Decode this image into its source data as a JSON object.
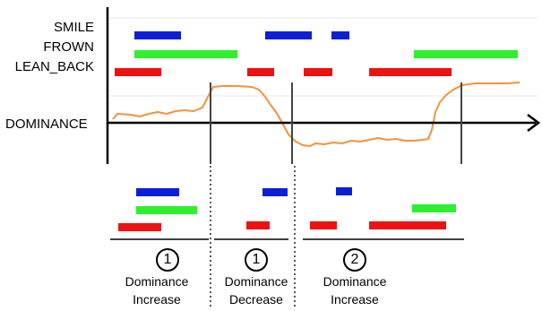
{
  "labels": {
    "smile": "SMILE",
    "frown": "FROWN",
    "lean_back": "LEAN_BACK",
    "dominance": "DOMINANCE"
  },
  "colors": {
    "smile": "#0b1fd8",
    "frown": "#2ef02e",
    "lean_back": "#ee1111",
    "dominance_curve": "#f5923c",
    "axis": "#000000",
    "divider": "#444444",
    "guide": "#e8e8e8"
  },
  "segments": [
    {
      "number": "1",
      "line1": "Dominance",
      "line2": "Increase"
    },
    {
      "number": "1",
      "line1": "Dominance",
      "line2": "Decrease"
    },
    {
      "number": "2",
      "line1": "Dominance",
      "line2": "Increase"
    }
  ]
}
